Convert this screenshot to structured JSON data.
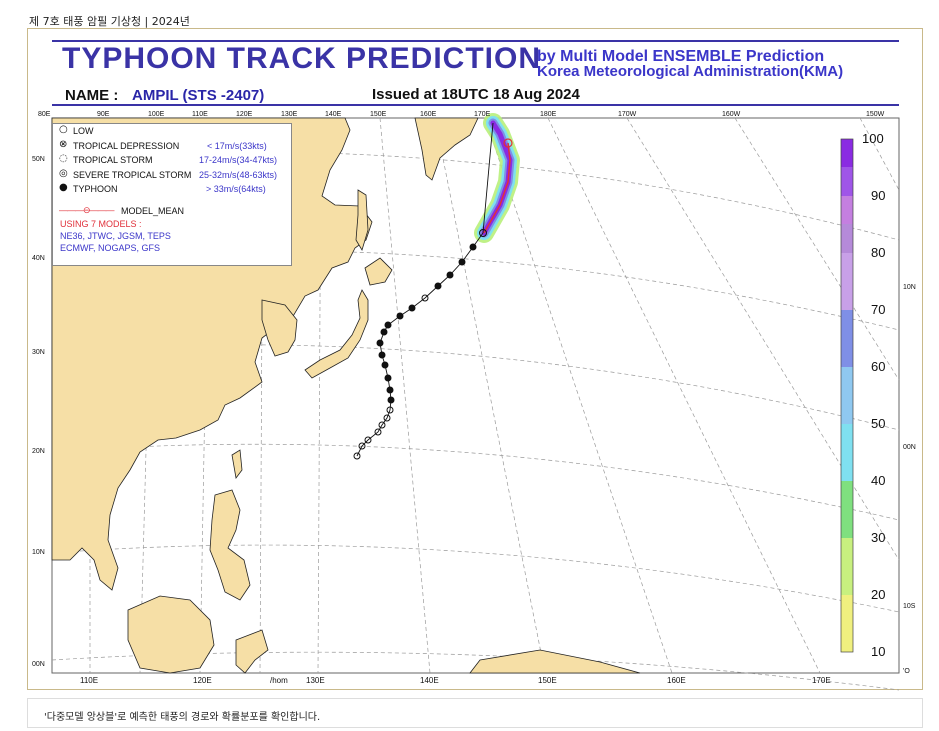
{
  "page_caption": "제 7호 태풍 암필 기상청 | 2024년",
  "header": {
    "title": "TYPHOON  TRACK  PREDICTION",
    "by_line1": "by Multi Model ENSEMBLE Prediction",
    "by_line2": "Korea Meteorological Administration(KMA)",
    "name_label": "NAME :",
    "name_value": "AMPIL (STS -2407)",
    "issued": "Issued at 18UTC 18 Aug 2024"
  },
  "legend": {
    "low": "LOW",
    "td": "TROPICAL DEPRESSION",
    "td_range": "< 17m/s(33kts)",
    "ts": "TROPICAL STORM",
    "ts_range": "17-24m/s(34-47kts)",
    "sts": "SEVERE TROPICAL STORM",
    "sts_range": "25-32m/s(48-63kts)",
    "ty": "TYPHOON",
    "ty_range": "> 33m/s(64kts)",
    "model_mean": "MODEL_MEAN",
    "using": "USING  7 MODELS :",
    "models_line1": "NE36, JTWC, JGSM, TEPS",
    "models_line2": "ECMWF, NOGAPS, GFS"
  },
  "axes": {
    "top_ticks": [
      "80E",
      "90E",
      "100E",
      "110E",
      "120E",
      "130E",
      "140E",
      "150E",
      "160E",
      "170E",
      "180E",
      "170W",
      "160W",
      "150W"
    ],
    "bottom_ticks": [
      "110E",
      "120E",
      "/hom",
      "130E",
      "140E",
      "150E",
      "160E",
      "170E"
    ],
    "left_ticks": [
      "50N",
      "40N",
      "30N",
      "20N",
      "10N",
      "00N"
    ],
    "right_ticks": [
      "10N",
      "00N",
      "10S",
      "'O"
    ]
  },
  "colorbar": {
    "labels": [
      "100",
      "90",
      "80",
      "70",
      "60",
      "50",
      "40",
      "30",
      "20",
      "10"
    ],
    "colors": [
      "#8a2be2",
      "#9f55e8",
      "#c47fe0",
      "#b58ad9",
      "#7f8fe6",
      "#8fc8f0",
      "#7fe0f0",
      "#7fe07f",
      "#c8f07f",
      "#f0f07f"
    ]
  },
  "footer": {
    "caption": "'다중모델 앙상블'로 예측한 태풍의 경로와 확률분포를 확인합니다."
  }
}
